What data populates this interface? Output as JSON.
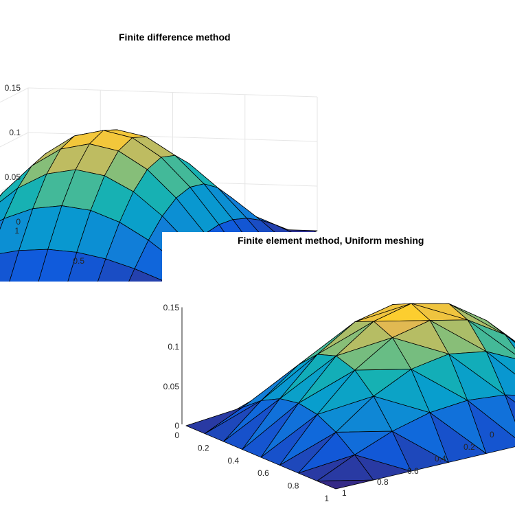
{
  "chart_data": [
    {
      "type": "surface",
      "title": "Finite difference method",
      "method": "finite-difference",
      "grid": "regular 11x11 nodes on the unit square",
      "zlim": [
        0,
        0.15
      ],
      "z_ticks": [
        "0",
        "0.05",
        "0.1",
        "0.15"
      ],
      "y_ticks": [
        "1",
        "0.5",
        "0"
      ],
      "colormap": "parula",
      "grid_on": true,
      "peak_z": 0.147,
      "boundary_z": 0
    },
    {
      "type": "surface",
      "title": "Finite element method, Uniform meshing",
      "method": "finite-element",
      "mesh": "uniform triangulation of the unit square, 9x9 nodes",
      "zlim": [
        0,
        0.15
      ],
      "z_ticks": [
        "0",
        "0.05",
        "0.1",
        "0.15"
      ],
      "x_ticks": [
        "0",
        "0.2",
        "0.4",
        "0.6",
        "0.8",
        "1"
      ],
      "y_ticks": [
        "0",
        "0.2",
        "0.4",
        "0.6",
        "0.8",
        "1"
      ],
      "colormap": "parula",
      "shading": "interp",
      "grid_on": false,
      "peak_z": 0.15,
      "boundary_z": 0
    }
  ]
}
